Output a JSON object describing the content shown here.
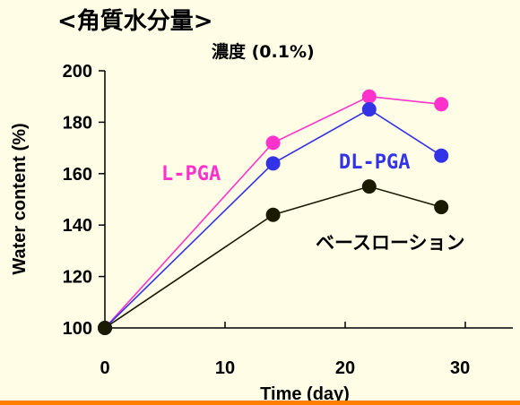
{
  "chart_data": {
    "type": "line",
    "title": "<角質水分量>",
    "subtitle": "濃度 (0.1%)",
    "xlabel": "Time (day)",
    "ylabel": "Water content (%)",
    "xlim": [
      0,
      30
    ],
    "ylim": [
      100,
      200
    ],
    "x_ticks": [
      0,
      10,
      20,
      30
    ],
    "y_ticks": [
      100,
      120,
      140,
      160,
      180,
      200
    ],
    "grid": false,
    "series": [
      {
        "name": "L-PGA",
        "color": "#ff33cc",
        "x": [
          0,
          14,
          22,
          28
        ],
        "y": [
          100,
          172,
          190,
          187
        ]
      },
      {
        "name": "DL-PGA",
        "color": "#3333e6",
        "x": [
          0,
          14,
          22,
          28
        ],
        "y": [
          100,
          164,
          185,
          167
        ]
      },
      {
        "name": "ベースローション",
        "color": "#1a1a00",
        "x": [
          0,
          14,
          22,
          28
        ],
        "y": [
          100,
          144,
          155,
          147
        ]
      }
    ]
  },
  "bottom_bar_color": "#ff8000"
}
